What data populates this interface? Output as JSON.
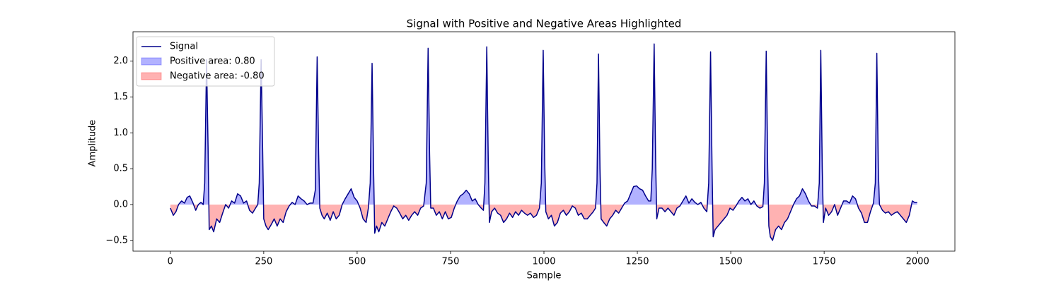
{
  "chart_data": {
    "type": "line",
    "title": "Signal with Positive and Negative Areas Highlighted",
    "xlabel": "Sample",
    "ylabel": "Amplitude",
    "xlim": [
      -100,
      2100
    ],
    "ylim": [
      -0.65,
      2.41
    ],
    "xticks": [
      0,
      250,
      500,
      750,
      1000,
      1250,
      1500,
      1750,
      2000
    ],
    "yticks": [
      {
        "value": -0.5,
        "label": "−0.5"
      },
      {
        "value": 0,
        "label": "0.0"
      },
      {
        "value": 0.5,
        "label": "0.5"
      },
      {
        "value": 1,
        "label": "1.0"
      },
      {
        "value": 1.5,
        "label": "1.5"
      },
      {
        "value": 2,
        "label": "2.0"
      }
    ],
    "legend": "upper left",
    "fills": {
      "positive": {
        "name": "Positive area: 0.80",
        "color": "#0000ff",
        "opacity": 0.3
      },
      "negative": {
        "name": "Negative area: -0.80",
        "color": "#ff0000",
        "opacity": 0.3
      }
    },
    "x": [
      0,
      8,
      15,
      22,
      30,
      38,
      45,
      52,
      60,
      68,
      75,
      82,
      88,
      92,
      97,
      101,
      104,
      110,
      116,
      124,
      132,
      140,
      148,
      156,
      164,
      172,
      180,
      188,
      196,
      204,
      212,
      220,
      228,
      234,
      238,
      243,
      247,
      250,
      256,
      262,
      270,
      278,
      286,
      294,
      302,
      310,
      318,
      326,
      334,
      342,
      350,
      358,
      366,
      374,
      382,
      388,
      393,
      397,
      400,
      406,
      412,
      420,
      428,
      436,
      444,
      452,
      460,
      468,
      476,
      484,
      492,
      500,
      508,
      516,
      524,
      530,
      535,
      540,
      544,
      547,
      552,
      558,
      566,
      574,
      582,
      590,
      598,
      606,
      614,
      622,
      630,
      638,
      646,
      654,
      662,
      670,
      678,
      685,
      690,
      694,
      697,
      704,
      712,
      720,
      728,
      736,
      744,
      752,
      760,
      768,
      776,
      784,
      792,
      800,
      808,
      816,
      824,
      832,
      838,
      842,
      847,
      851,
      854,
      860,
      868,
      876,
      884,
      892,
      900,
      908,
      916,
      924,
      932,
      940,
      948,
      956,
      964,
      972,
      980,
      988,
      993,
      998,
      1002,
      1005,
      1012,
      1020,
      1028,
      1036,
      1044,
      1052,
      1060,
      1068,
      1076,
      1084,
      1092,
      1100,
      1108,
      1116,
      1124,
      1132,
      1138,
      1142,
      1146,
      1150,
      1153,
      1160,
      1168,
      1176,
      1184,
      1192,
      1200,
      1208,
      1216,
      1224,
      1232,
      1240,
      1248,
      1256,
      1264,
      1272,
      1280,
      1286,
      1290,
      1295,
      1299,
      1302,
      1308,
      1316,
      1324,
      1332,
      1340,
      1348,
      1356,
      1364,
      1372,
      1380,
      1388,
      1396,
      1404,
      1412,
      1420,
      1428,
      1436,
      1441,
      1446,
      1450,
      1453,
      1458,
      1466,
      1474,
      1482,
      1490,
      1498,
      1506,
      1514,
      1522,
      1530,
      1538,
      1546,
      1554,
      1562,
      1570,
      1578,
      1586,
      1590,
      1595,
      1599,
      1602,
      1606,
      1612,
      1620,
      1628,
      1636,
      1644,
      1652,
      1660,
      1668,
      1676,
      1684,
      1692,
      1700,
      1708,
      1716,
      1724,
      1732,
      1737,
      1741,
      1745,
      1748,
      1754,
      1762,
      1770,
      1778,
      1786,
      1794,
      1802,
      1810,
      1818,
      1826,
      1834,
      1842,
      1850,
      1858,
      1866,
      1874,
      1882,
      1887,
      1891,
      1895,
      1898,
      1906,
      1914,
      1922,
      1930,
      1938,
      1946,
      1954,
      1962,
      1970,
      1978,
      1986,
      1992,
      1999
    ],
    "series": [
      {
        "name": "Signal",
        "color": "#00008b",
        "values": [
          -0.05,
          -0.15,
          -0.1,
          0.0,
          0.05,
          0.02,
          0.1,
          0.12,
          0.03,
          -0.08,
          0.0,
          0.03,
          0.0,
          0.3,
          2.02,
          0.8,
          -0.35,
          -0.3,
          -0.38,
          -0.2,
          -0.25,
          -0.12,
          0.0,
          -0.05,
          0.05,
          0.02,
          0.15,
          0.12,
          0.02,
          0.05,
          -0.08,
          -0.12,
          -0.05,
          0.0,
          0.3,
          2.02,
          0.8,
          -0.2,
          -0.3,
          -0.35,
          -0.28,
          -0.2,
          -0.3,
          -0.2,
          -0.25,
          -0.1,
          -0.02,
          0.03,
          0.0,
          0.12,
          0.08,
          0.05,
          0.0,
          0.02,
          0.02,
          0.2,
          2.06,
          0.7,
          -0.05,
          -0.15,
          -0.2,
          -0.12,
          -0.22,
          -0.1,
          -0.2,
          -0.15,
          0.0,
          0.08,
          0.15,
          0.22,
          0.1,
          0.05,
          -0.05,
          -0.2,
          -0.25,
          -0.05,
          0.3,
          1.97,
          0.5,
          -0.4,
          -0.3,
          -0.38,
          -0.25,
          -0.3,
          -0.2,
          -0.1,
          -0.02,
          -0.05,
          -0.12,
          -0.2,
          -0.15,
          -0.22,
          -0.15,
          -0.1,
          -0.15,
          -0.05,
          -0.02,
          0.3,
          2.18,
          0.7,
          -0.05,
          -0.05,
          -0.15,
          -0.1,
          -0.2,
          -0.1,
          -0.2,
          -0.18,
          -0.05,
          0.05,
          0.12,
          0.15,
          0.2,
          0.15,
          0.05,
          0.08,
          0.0,
          -0.05,
          -0.08,
          0.3,
          2.2,
          0.6,
          -0.25,
          -0.1,
          -0.05,
          -0.12,
          -0.15,
          -0.25,
          -0.2,
          -0.12,
          -0.18,
          -0.1,
          -0.15,
          -0.08,
          -0.12,
          -0.15,
          -0.12,
          -0.18,
          -0.15,
          -0.05,
          0.3,
          2.15,
          0.6,
          -0.1,
          -0.2,
          -0.15,
          -0.3,
          -0.25,
          -0.12,
          -0.08,
          -0.15,
          -0.1,
          -0.02,
          -0.05,
          -0.15,
          -0.12,
          -0.2,
          -0.2,
          -0.15,
          -0.1,
          -0.05,
          0.3,
          2.1,
          0.5,
          -0.2,
          -0.25,
          -0.3,
          -0.2,
          -0.15,
          -0.08,
          -0.12,
          -0.05,
          0.02,
          0.05,
          0.15,
          0.25,
          0.26,
          0.22,
          0.2,
          0.12,
          0.05,
          0.05,
          0.5,
          2.24,
          0.6,
          -0.2,
          -0.05,
          -0.05,
          -0.1,
          -0.05,
          -0.1,
          -0.15,
          -0.05,
          -0.02,
          0.05,
          0.12,
          0.02,
          0.08,
          0.03,
          0.0,
          0.03,
          -0.05,
          -0.1,
          0.3,
          2.13,
          0.5,
          -0.45,
          -0.35,
          -0.3,
          -0.25,
          -0.2,
          -0.15,
          -0.05,
          -0.08,
          -0.02,
          0.05,
          0.1,
          0.05,
          0.08,
          0.0,
          0.05,
          -0.02,
          -0.05,
          -0.03,
          0.3,
          2.14,
          0.5,
          -0.3,
          -0.45,
          -0.5,
          -0.35,
          -0.3,
          -0.35,
          -0.25,
          -0.2,
          -0.1,
          0.0,
          0.08,
          0.12,
          0.22,
          0.15,
          0.05,
          -0.02,
          -0.02,
          -0.05,
          0.3,
          2.15,
          0.5,
          -0.25,
          -0.05,
          -0.15,
          -0.1,
          0.0,
          -0.15,
          -0.05,
          0.05,
          0.05,
          0.02,
          0.12,
          0.08,
          -0.05,
          -0.12,
          -0.25,
          -0.25,
          -0.1,
          0.02,
          0.3,
          2.11,
          0.5,
          0.0,
          -0.08,
          -0.12,
          -0.1,
          -0.15,
          -0.12,
          -0.1,
          -0.15,
          -0.2,
          -0.25,
          -0.15,
          0.05,
          0.03,
          0.03
        ]
      }
    ]
  }
}
